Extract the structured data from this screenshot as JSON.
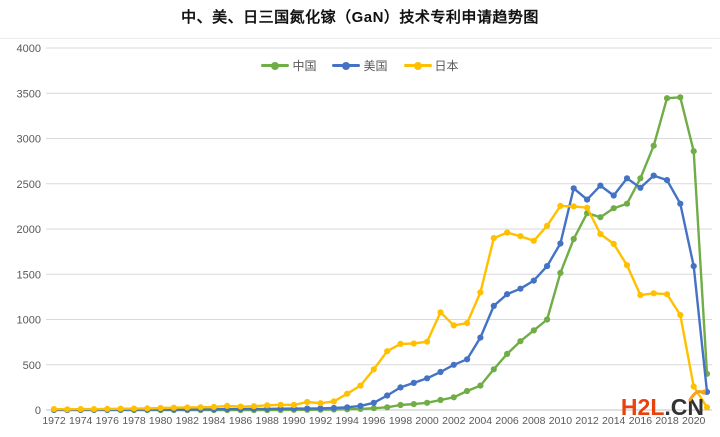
{
  "page": {
    "title": "中、美、日三国氮化镓（GaN）技术专利申请趋势图",
    "watermark": {
      "primary": "H2L",
      "secondary": ".CN"
    }
  },
  "legend": [
    {
      "label": "中国",
      "color": "#70AD47"
    },
    {
      "label": "美国",
      "color": "#4472C4"
    },
    {
      "label": "日本",
      "color": "#FFC000"
    }
  ],
  "colors": {
    "china_green": "#70AD47",
    "us_blue": "#4472C4",
    "japan_yellow": "#FFC000",
    "gridline": "#d9d9d9",
    "axis_line": "#c3c3c3",
    "tick_text": "#595959",
    "watermark_red": "#e8430e",
    "watermark_dark": "#333333",
    "watermark_arrow": "#f6a21c"
  },
  "chart_data": {
    "type": "line",
    "title": "中、美、日三国氮化镓（GaN）技术专利申请趋势图",
    "xlabel": "",
    "ylabel": "",
    "ylim": [
      0,
      4000
    ],
    "y_ticks": [
      0,
      500,
      1000,
      1500,
      2000,
      2500,
      3000,
      3500,
      4000
    ],
    "grid": "horizontal",
    "legend_position": "top",
    "marker": "circle",
    "x": [
      1972,
      1973,
      1974,
      1975,
      1976,
      1977,
      1978,
      1979,
      1980,
      1981,
      1982,
      1983,
      1984,
      1985,
      1986,
      1987,
      1988,
      1989,
      1990,
      1991,
      1992,
      1993,
      1994,
      1995,
      1996,
      1997,
      1998,
      1999,
      2000,
      2001,
      2002,
      2003,
      2004,
      2005,
      2006,
      2007,
      2008,
      2009,
      2010,
      2011,
      2012,
      2013,
      2014,
      2015,
      2016,
      2017,
      2018,
      2019,
      2020,
      2021
    ],
    "x_tick_labels": [
      "1972",
      "1974",
      "1976",
      "1978",
      "1980",
      "1982",
      "1984",
      "1986",
      "1988",
      "1990",
      "1992",
      "1994",
      "1996",
      "1998",
      "2000",
      "2002",
      "2004",
      "2006",
      "2008",
      "2010",
      "2012",
      "2014",
      "2016",
      "2018",
      "2020"
    ],
    "series": [
      {
        "name": "中国",
        "color": "#70AD47",
        "values": [
          0,
          0,
          0,
          0,
          0,
          0,
          0,
          0,
          0,
          0,
          0,
          0,
          0,
          0,
          0,
          0,
          0,
          0,
          2,
          2,
          3,
          5,
          8,
          12,
          20,
          30,
          55,
          65,
          80,
          110,
          140,
          210,
          270,
          450,
          620,
          760,
          880,
          1000,
          1515,
          1890,
          2175,
          2130,
          2230,
          2280,
          2560,
          2920,
          3445,
          3455,
          2860,
          400
        ]
      },
      {
        "name": "美国",
        "color": "#4472C4",
        "values": [
          2,
          2,
          2,
          3,
          3,
          3,
          4,
          4,
          5,
          5,
          6,
          8,
          8,
          10,
          10,
          12,
          12,
          14,
          15,
          16,
          18,
          22,
          30,
          45,
          80,
          160,
          250,
          300,
          350,
          420,
          500,
          560,
          800,
          1150,
          1280,
          1340,
          1430,
          1590,
          1840,
          2450,
          2325,
          2480,
          2370,
          2560,
          2455,
          2590,
          2540,
          2280,
          1590,
          200
        ]
      },
      {
        "name": "日本",
        "color": "#FFC000",
        "values": [
          10,
          8,
          10,
          10,
          12,
          14,
          16,
          18,
          22,
          25,
          28,
          30,
          33,
          45,
          38,
          42,
          52,
          58,
          55,
          88,
          75,
          95,
          180,
          270,
          450,
          650,
          730,
          735,
          755,
          1080,
          935,
          960,
          1300,
          1900,
          1960,
          1920,
          1870,
          2035,
          2255,
          2250,
          2235,
          1945,
          1835,
          1600,
          1270,
          1290,
          1280,
          1050,
          260,
          30
        ]
      }
    ]
  }
}
